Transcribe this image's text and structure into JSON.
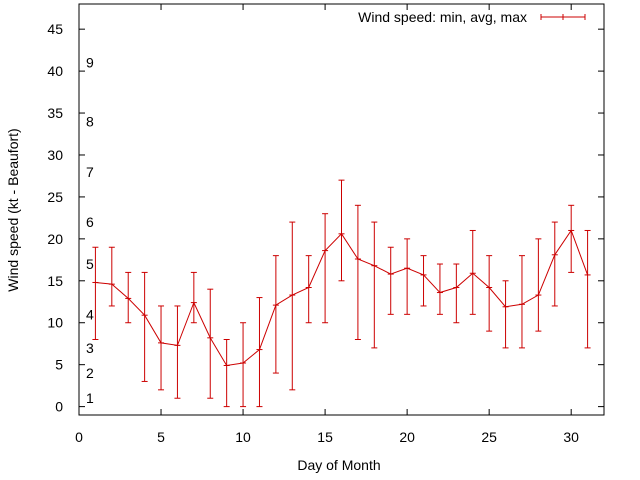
{
  "chart_data": {
    "type": "line",
    "xlabel": "Day of Month",
    "ylabel": "Wind speed (kt - Beaufort)",
    "xlim": [
      0,
      32
    ],
    "ylim": [
      -1,
      48
    ],
    "x_ticks": [
      0,
      5,
      10,
      15,
      20,
      25,
      30
    ],
    "y_ticks": [
      0,
      5,
      10,
      15,
      20,
      25,
      30,
      35,
      40,
      45
    ],
    "grid": false,
    "legend_position": "top-right",
    "colors": {
      "series": "#cc0000",
      "axis": "#000000",
      "background": "#ffffff"
    },
    "beaufort_labels": [
      {
        "label": "1",
        "kt": 1
      },
      {
        "label": "2",
        "kt": 4
      },
      {
        "label": "3",
        "kt": 7
      },
      {
        "label": "4",
        "kt": 11
      },
      {
        "label": "5",
        "kt": 17
      },
      {
        "label": "6",
        "kt": 22
      },
      {
        "label": "7",
        "kt": 28
      },
      {
        "label": "8",
        "kt": 34
      },
      {
        "label": "9",
        "kt": 41
      }
    ],
    "series": [
      {
        "name": "Wind speed: min, avg, max",
        "x": [
          1,
          2,
          3,
          4,
          5,
          6,
          7,
          8,
          9,
          10,
          11,
          12,
          13,
          14,
          15,
          16,
          17,
          18,
          19,
          20,
          21,
          22,
          23,
          24,
          25,
          26,
          27,
          28,
          29,
          30,
          31
        ],
        "avg": [
          14.8,
          14.6,
          12.9,
          10.9,
          7.6,
          7.3,
          12.4,
          8.2,
          4.9,
          5.2,
          6.8,
          12.1,
          13.3,
          14.2,
          18.6,
          20.6,
          17.6,
          16.8,
          15.8,
          16.5,
          15.7,
          13.6,
          14.2,
          15.9,
          14.2,
          11.9,
          12.2,
          13.3,
          18.1,
          21.0,
          15.7
        ],
        "min": [
          8,
          12,
          10,
          3,
          2,
          1,
          10,
          1,
          0,
          0,
          0,
          4,
          2,
          10,
          10,
          15,
          8,
          7,
          11,
          11,
          12,
          11,
          10,
          11,
          9,
          7,
          7,
          9,
          12,
          16,
          7
        ],
        "max": [
          19,
          19,
          16,
          16,
          12,
          12,
          16,
          14,
          8,
          10,
          13,
          18,
          22,
          18,
          23,
          27,
          24,
          22,
          19,
          20,
          18,
          17,
          17,
          21,
          18,
          15,
          18,
          20,
          22,
          24,
          21
        ]
      }
    ]
  }
}
